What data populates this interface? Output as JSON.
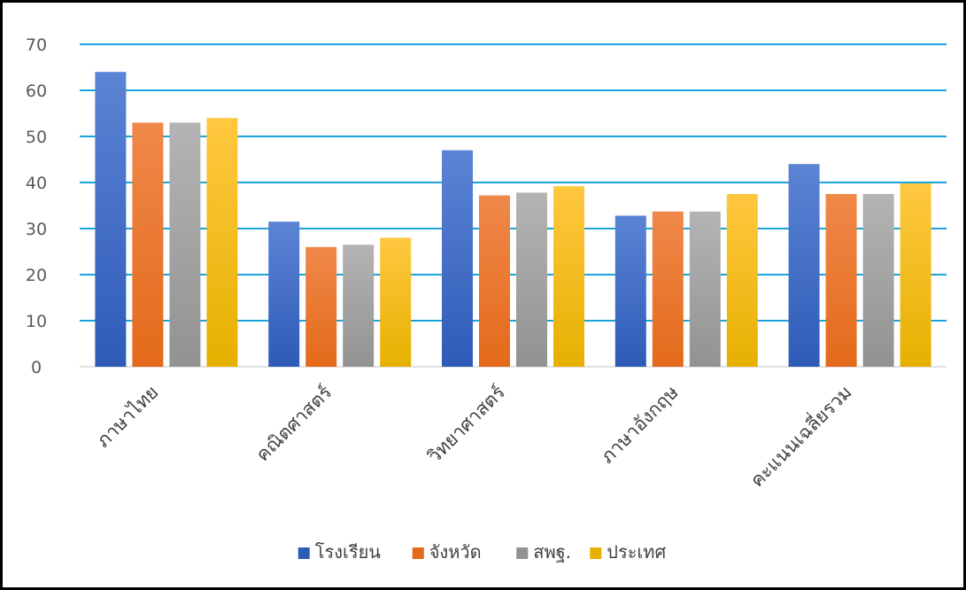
{
  "chart_data": {
    "type": "bar",
    "title": "",
    "xlabel": "",
    "ylabel": "",
    "ylim": [
      0,
      70
    ],
    "yticks": [
      0,
      10,
      20,
      30,
      40,
      50,
      60,
      70
    ],
    "grid": true,
    "legend_position": "bottom",
    "categories": [
      "ภาษาไทย",
      "คณิตศาสตร์",
      "วิทยาศาสตร์",
      "ภาษาอังกฤษ",
      "คะแนนเฉลี่ยรวม"
    ],
    "series": [
      {
        "name": "โรงเรียน",
        "values": [
          64,
          31.5,
          47,
          32.8,
          44
        ],
        "color_top": "#5b84d4",
        "color_bottom": "#2f5bb8"
      },
      {
        "name": "จังหวัด",
        "values": [
          53,
          26,
          37.2,
          33.7,
          37.5
        ],
        "color_top": "#f0884a",
        "color_bottom": "#e36a1a"
      },
      {
        "name": "สพฐ.",
        "values": [
          53,
          26.5,
          37.8,
          33.7,
          37.5
        ],
        "color_top": "#b4b4b4",
        "color_bottom": "#929292"
      },
      {
        "name": "ประเทศ",
        "values": [
          54,
          28,
          39.2,
          37.5,
          39.8
        ],
        "color_top": "#ffc840",
        "color_bottom": "#e6b000"
      }
    ],
    "gridline_color": "#1aa3d9"
  }
}
